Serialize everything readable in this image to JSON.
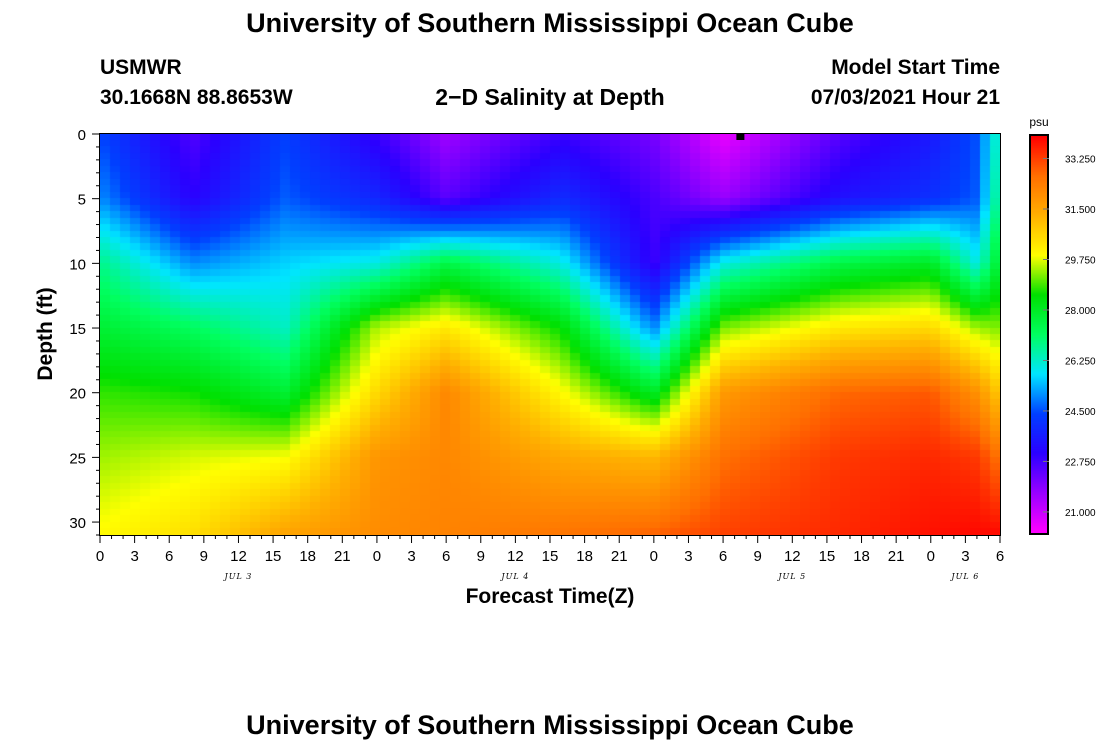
{
  "page": {
    "title_top": "University of Southern Mississippi Ocean Cube",
    "title_bottom": "University of Southern Mississippi Ocean Cube",
    "station_id": "USMWR",
    "station_coords": "30.1668N  88.8653W",
    "model_start_label": "Model Start Time",
    "model_start_value": "07/03/2021 Hour 21",
    "plot_title": "2−D Salinity at Depth"
  },
  "chart_data": {
    "type": "heatmap",
    "title": "2−D Salinity at Depth",
    "xlabel": "Forecast Time(Z)",
    "ylabel": "Depth (ft)",
    "x_tick_labels": [
      "0",
      "3",
      "6",
      "9",
      "12",
      "15",
      "18",
      "21",
      "0",
      "3",
      "6",
      "9",
      "12",
      "15",
      "18",
      "21",
      "0",
      "3",
      "6",
      "9",
      "12",
      "15",
      "18",
      "21",
      "0",
      "3",
      "6"
    ],
    "x_ticks_hours": [
      0,
      3,
      6,
      9,
      12,
      15,
      18,
      21,
      24,
      27,
      30,
      33,
      36,
      39,
      42,
      45,
      48,
      51,
      54,
      57,
      60,
      63,
      66,
      69,
      72,
      75,
      78
    ],
    "x_range_hours": [
      0,
      78
    ],
    "date_labels": [
      {
        "label": "JUL 3",
        "hour": 12
      },
      {
        "label": "JUL 4",
        "hour": 36
      },
      {
        "label": "JUL 5",
        "hour": 60
      },
      {
        "label": "JUL 6",
        "hour": 75
      }
    ],
    "y_ticks": [
      0,
      5,
      10,
      15,
      20,
      25,
      30
    ],
    "y_range": [
      0,
      31
    ],
    "y_inverted": true,
    "colorbar": {
      "unit": "psu",
      "ticks": [
        33.25,
        31.5,
        29.75,
        28.0,
        26.25,
        24.5,
        22.75,
        21.0
      ],
      "tick_labels": [
        "33.250",
        "31.500",
        "29.750",
        "28.000",
        "26.250",
        "24.500",
        "22.750",
        "21.000"
      ],
      "range": [
        20.2,
        34.1
      ],
      "colors": [
        "#ff00ff",
        "#9900ff",
        "#2b00ff",
        "#0040ff",
        "#00e5ff",
        "#00ff60",
        "#00e000",
        "#ffff00",
        "#ffb000",
        "#ff7000",
        "#ff0000"
      ]
    },
    "values_hours": [
      0,
      8,
      16,
      24,
      30,
      40,
      48,
      54,
      64,
      72,
      76,
      78
    ],
    "values_depths": [
      0,
      5,
      10,
      15,
      20,
      25,
      31
    ],
    "values": [
      [
        24.4,
        22.5,
        24.3,
        22.8,
        21.5,
        22.8,
        22.0,
        20.5,
        22.4,
        23.5,
        24.5,
        26.5
      ],
      [
        25.0,
        23.0,
        24.6,
        23.8,
        22.4,
        23.9,
        22.6,
        21.6,
        23.3,
        24.0,
        24.6,
        27.0
      ],
      [
        26.8,
        25.0,
        25.6,
        26.0,
        27.5,
        26.0,
        22.8,
        26.0,
        27.5,
        28.0,
        26.0,
        28.0
      ],
      [
        27.8,
        27.2,
        26.3,
        29.5,
        30.3,
        28.5,
        25.0,
        29.2,
        30.3,
        30.6,
        29.4,
        29.2
      ],
      [
        28.8,
        28.6,
        27.8,
        30.6,
        32.2,
        30.0,
        28.0,
        31.8,
        32.8,
        33.0,
        32.0,
        30.8
      ],
      [
        29.4,
        29.7,
        29.9,
        31.9,
        32.2,
        31.5,
        31.2,
        32.7,
        33.4,
        33.6,
        33.4,
        32.6
      ],
      [
        30.0,
        30.5,
        31.6,
        32.1,
        32.3,
        32.6,
        32.9,
        33.3,
        33.6,
        33.9,
        34.0,
        34.0
      ]
    ],
    "marker": {
      "hour": 55.5,
      "depth": 0
    }
  }
}
